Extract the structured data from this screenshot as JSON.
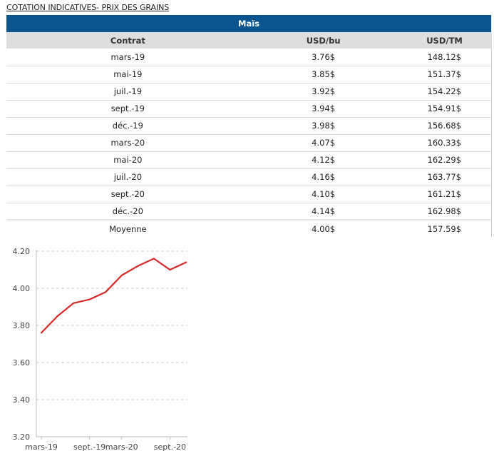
{
  "page": {
    "title": "COTATION INDICATIVES- PRIX DES GRAINS"
  },
  "table": {
    "grain": "Maïs",
    "columns": [
      "Contrat",
      "USD/bu",
      "USD/TM"
    ],
    "rows": [
      {
        "contract": "mars-19",
        "usd_bu": "3.76$",
        "usd_tm": "148.12$"
      },
      {
        "contract": "mai-19",
        "usd_bu": "3.85$",
        "usd_tm": "151.37$"
      },
      {
        "contract": "juil.-19",
        "usd_bu": "3.92$",
        "usd_tm": "154.22$"
      },
      {
        "contract": "sept.-19",
        "usd_bu": "3.94$",
        "usd_tm": "154.91$"
      },
      {
        "contract": "déc.-19",
        "usd_bu": "3.98$",
        "usd_tm": "156.68$"
      },
      {
        "contract": "mars-20",
        "usd_bu": "4.07$",
        "usd_tm": "160.33$"
      },
      {
        "contract": "mai-20",
        "usd_bu": "4.12$",
        "usd_tm": "162.29$"
      },
      {
        "contract": "juil.-20",
        "usd_bu": "4.16$",
        "usd_tm": "163.77$"
      },
      {
        "contract": "sept.-20",
        "usd_bu": "4.10$",
        "usd_tm": "161.21$"
      },
      {
        "contract": "déc.-20",
        "usd_bu": "4.14$",
        "usd_tm": "162.98$"
      }
    ],
    "average": {
      "label": "Moyenne",
      "usd_bu": "4.00$",
      "usd_tm": "157.59$"
    },
    "colors": {
      "header_band": "#0a5590",
      "column_header": "#dedede"
    }
  },
  "chart_data": {
    "type": "line",
    "title": "",
    "xlabel": "",
    "ylabel": "",
    "categories": [
      "mars-19",
      "mai-19",
      "juil.-19",
      "sept.-19",
      "déc.-19",
      "mars-20",
      "mai-20",
      "juil.-20",
      "sept.-20",
      "déc.-20"
    ],
    "x_tick_labels": [
      "mars-19",
      "sept.-19",
      "mars-20",
      "sept.-20"
    ],
    "series": [
      {
        "values": [
          3.76,
          3.85,
          3.92,
          3.94,
          3.98,
          4.07,
          4.12,
          4.16,
          4.1,
          4.14
        ],
        "color": "#d42a2a"
      }
    ],
    "ylim": [
      3.2,
      4.2
    ],
    "y_ticks": [
      "3.20",
      "3.40",
      "3.60",
      "3.80",
      "4.00",
      "4.20"
    ],
    "grid": "horizontal dashed",
    "legend": "none"
  }
}
